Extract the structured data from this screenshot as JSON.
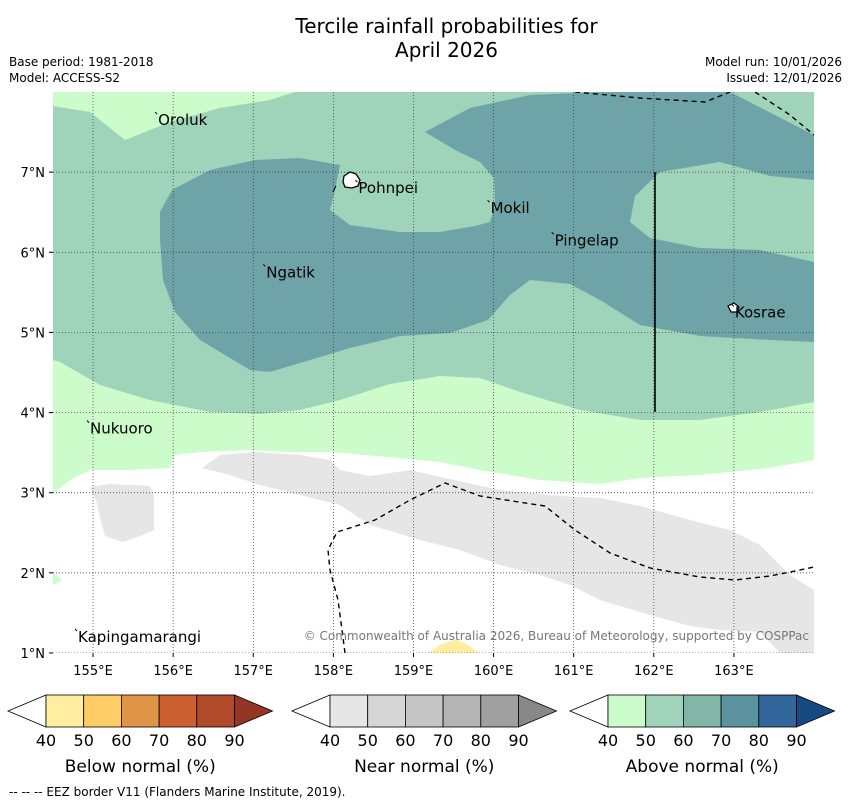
{
  "title": {
    "line1": "Tercile rainfall probabilities for",
    "line2": "April 2026"
  },
  "meta": {
    "base_period": "Base period: 1981-2018",
    "model": "Model: ACCESS-S2",
    "model_run": "Model run: 10/01/2026",
    "issued": "Issued: 12/01/2026"
  },
  "map": {
    "lon_range": [
      154.5,
      164.0
    ],
    "lat_range": [
      1.0,
      8.0
    ],
    "lon_ticks": [
      "155°E",
      "156°E",
      "157°E",
      "158°E",
      "159°E",
      "160°E",
      "161°E",
      "162°E",
      "163°E"
    ],
    "lat_ticks": [
      "7°N",
      "6°N",
      "5°N",
      "4°N",
      "3°N",
      "2°N",
      "1°N"
    ],
    "places": [
      {
        "name": "Oroluk",
        "lon": 155.8,
        "lat": 7.7
      },
      {
        "name": "Pohnpei",
        "lon": 158.3,
        "lat": 6.85
      },
      {
        "name": "Mokil",
        "lon": 159.95,
        "lat": 6.6
      },
      {
        "name": "Pingelap",
        "lon": 160.75,
        "lat": 6.2
      },
      {
        "name": "Ngatik",
        "lon": 157.15,
        "lat": 5.8
      },
      {
        "name": "Kosrae",
        "lon": 163.0,
        "lat": 5.3
      },
      {
        "name": "Nukuoro",
        "lon": 154.95,
        "lat": 3.85
      },
      {
        "name": "Kapingamarangi",
        "lon": 154.8,
        "lat": 1.25
      }
    ],
    "copyright": "© Commonwealth of Australia 2026, Bureau of Meteorology, supported by COSPPac"
  },
  "colors": {
    "above_40": "#ccfcca",
    "above_50": "#a0d4ba",
    "above_60": "#6ea4a8",
    "near_40": "#e6e6e6",
    "below_40": "#ffeea0"
  },
  "legends": [
    {
      "title": "Below normal (%)",
      "ticks": [
        "40",
        "50",
        "60",
        "70",
        "80",
        "90"
      ],
      "colors": [
        "#ffffff",
        "#ffeea0",
        "#ffcc66",
        "#e09448",
        "#cc6030",
        "#b04a28",
        "#953622"
      ]
    },
    {
      "title": "Near normal (%)",
      "ticks": [
        "40",
        "50",
        "60",
        "70",
        "80",
        "90"
      ],
      "colors": [
        "#ffffff",
        "#e6e6e6",
        "#d6d6d6",
        "#c6c6c6",
        "#b4b4b4",
        "#a0a0a0",
        "#888888"
      ]
    },
    {
      "title": "Above normal (%)",
      "ticks": [
        "40",
        "50",
        "60",
        "70",
        "80",
        "90"
      ],
      "colors": [
        "#ffffff",
        "#ccfcca",
        "#a0d4ba",
        "#82b6a8",
        "#5a92a0",
        "#33669a",
        "#164a80"
      ]
    }
  ],
  "footnote": "--  --  -- EEZ border V11 (Flanders Marine Institute, 2019)."
}
